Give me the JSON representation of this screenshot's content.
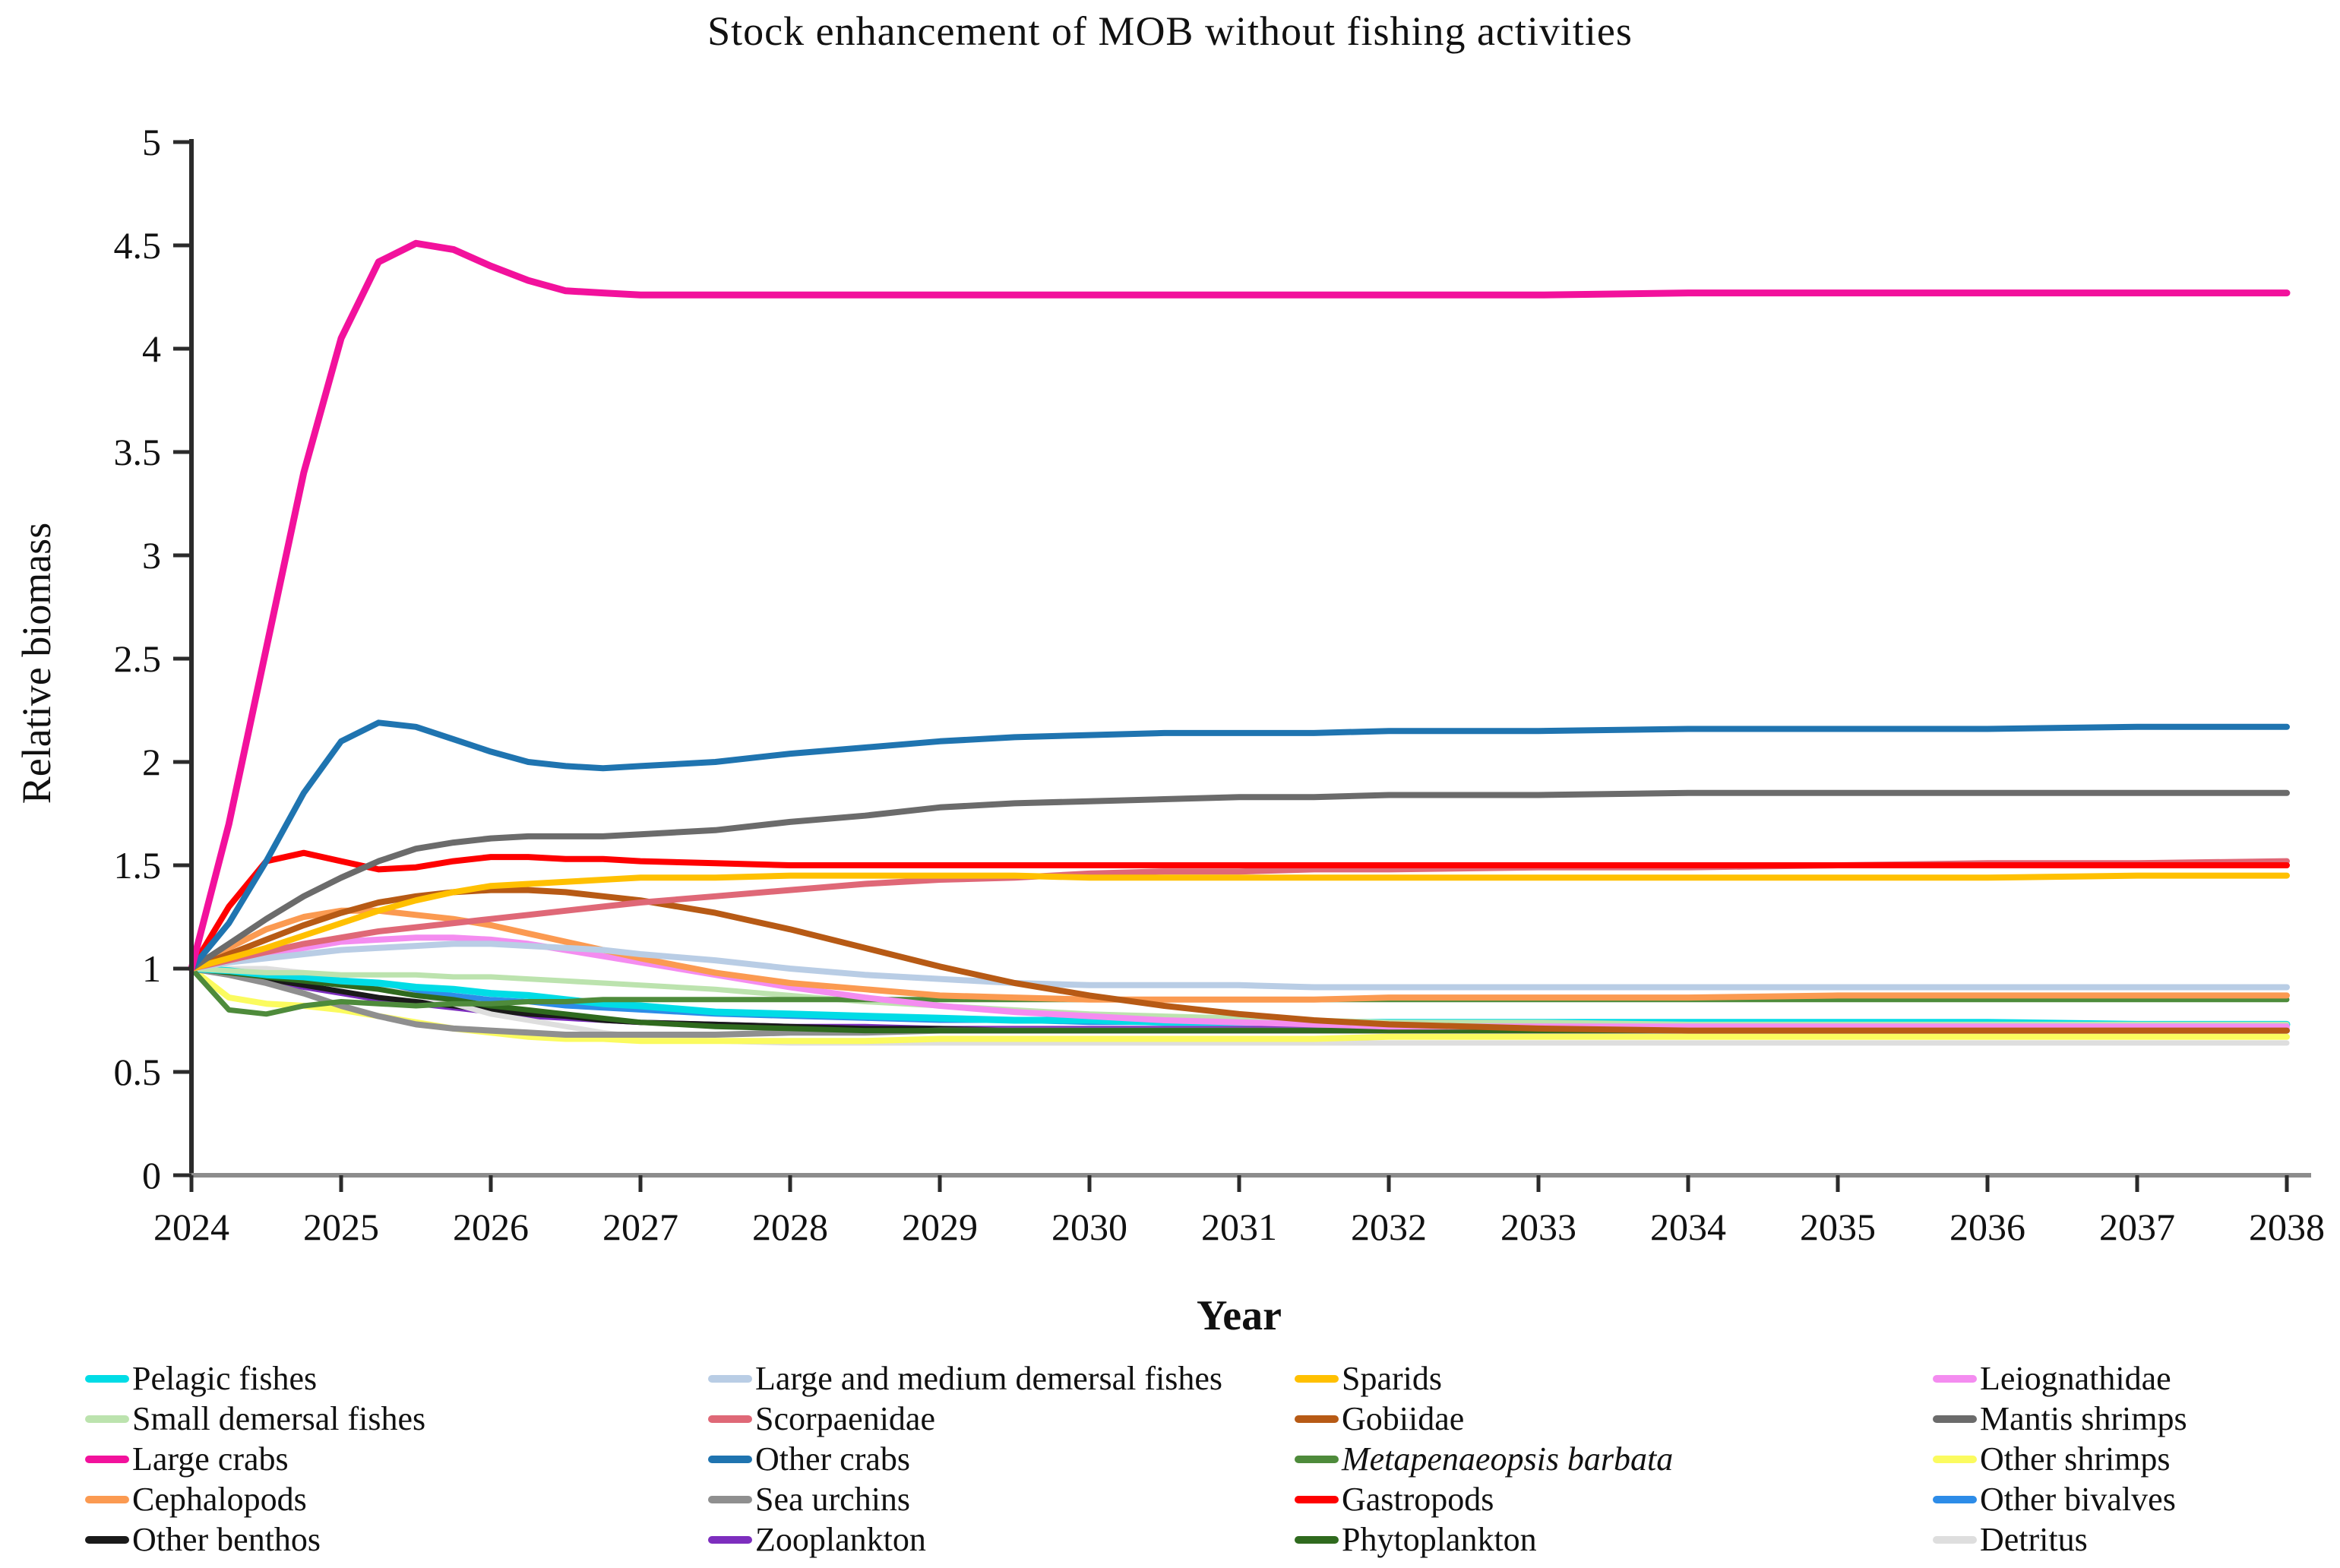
{
  "title": "Stock enhancement of MOB without fishing activities",
  "axes": {
    "x_label": "Year",
    "y_label": "Relative biomass",
    "x_tick_labels": [
      "2024",
      "2025",
      "2026",
      "2027",
      "2028",
      "2029",
      "2030",
      "2031",
      "2032",
      "2033",
      "2034",
      "2035",
      "2036",
      "2037",
      "2038"
    ],
    "y_tick_labels": [
      "5",
      "4.5",
      "4",
      "3.5",
      "3",
      "2.5",
      "2",
      "1.5",
      "1",
      "0.5",
      "0"
    ],
    "x_range": [
      2024,
      2038
    ],
    "y_range": [
      0,
      5
    ],
    "grid": false,
    "legend_position": "bottom"
  },
  "chart_data": {
    "type": "line",
    "x": [
      2024,
      2024.25,
      2024.5,
      2024.75,
      2025,
      2025.25,
      2025.5,
      2025.75,
      2026,
      2026.25,
      2026.5,
      2026.75,
      2027,
      2027.5,
      2028,
      2028.5,
      2029,
      2029.5,
      2030,
      2030.5,
      2031,
      2031.5,
      2032,
      2033,
      2034,
      2035,
      2036,
      2037,
      2038
    ],
    "series": [
      {
        "name": "Other bivalves",
        "slug": "other-bivalves",
        "color": "#2D8CE8",
        "width": 7,
        "legend_slot": 18,
        "values": [
          1.0,
          0.99,
          0.97,
          0.95,
          0.93,
          0.91,
          0.89,
          0.87,
          0.85,
          0.84,
          0.82,
          0.81,
          0.8,
          0.78,
          0.77,
          0.76,
          0.75,
          0.75,
          0.74,
          0.74,
          0.74,
          0.74,
          0.74,
          0.73,
          0.73,
          0.73,
          0.73,
          0.73,
          0.73
        ]
      },
      {
        "name": "Zooplankton",
        "slug": "zooplankton",
        "color": "#7D2EBE",
        "width": 7,
        "legend_slot": 9,
        "values": [
          1.0,
          0.97,
          0.94,
          0.91,
          0.88,
          0.85,
          0.83,
          0.81,
          0.79,
          0.77,
          0.76,
          0.75,
          0.74,
          0.73,
          0.72,
          0.72,
          0.71,
          0.71,
          0.71,
          0.71,
          0.71,
          0.71,
          0.71,
          0.71,
          0.71,
          0.71,
          0.71,
          0.71,
          0.71
        ]
      },
      {
        "name": "Other benthos",
        "slug": "other-benthos",
        "color": "#1A1A1A",
        "width": 7,
        "legend_slot": 4,
        "values": [
          1.0,
          0.98,
          0.95,
          0.92,
          0.89,
          0.86,
          0.84,
          0.82,
          0.8,
          0.78,
          0.77,
          0.75,
          0.74,
          0.73,
          0.72,
          0.71,
          0.71,
          0.7,
          0.7,
          0.7,
          0.7,
          0.7,
          0.7,
          0.7,
          0.7,
          0.7,
          0.7,
          0.7,
          0.7
        ]
      },
      {
        "name": "Detritus",
        "slug": "detritus",
        "color": "#DEDEDE",
        "width": 7,
        "legend_slot": 19,
        "values": [
          1.0,
          1.0,
          1.0,
          0.98,
          0.95,
          0.91,
          0.87,
          0.83,
          0.78,
          0.75,
          0.72,
          0.69,
          0.67,
          0.65,
          0.64,
          0.64,
          0.64,
          0.64,
          0.64,
          0.64,
          0.64,
          0.64,
          0.64,
          0.64,
          0.64,
          0.64,
          0.64,
          0.64,
          0.64
        ]
      },
      {
        "name": "Other shrimps",
        "slug": "other-shrimps",
        "color": "#FBFB5F",
        "width": 8,
        "legend_slot": 17,
        "values": [
          1.0,
          0.86,
          0.83,
          0.82,
          0.8,
          0.77,
          0.74,
          0.71,
          0.69,
          0.67,
          0.66,
          0.66,
          0.65,
          0.65,
          0.65,
          0.65,
          0.66,
          0.66,
          0.66,
          0.66,
          0.66,
          0.66,
          0.67,
          0.67,
          0.67,
          0.67,
          0.67,
          0.67,
          0.67
        ]
      },
      {
        "name": "Sea urchins",
        "slug": "sea-urchins",
        "color": "#8F8F8F",
        "width": 8,
        "legend_slot": 8,
        "values": [
          1.0,
          0.97,
          0.93,
          0.88,
          0.82,
          0.77,
          0.73,
          0.71,
          0.7,
          0.69,
          0.68,
          0.68,
          0.68,
          0.68,
          0.69,
          0.69,
          0.7,
          0.7,
          0.7,
          0.7,
          0.7,
          0.7,
          0.7,
          0.7,
          0.7,
          0.7,
          0.7,
          0.7,
          0.7
        ]
      },
      {
        "name": "Phytoplankton",
        "slug": "phytoplankton",
        "color": "#2F6A1E",
        "width": 7,
        "legend_slot": 14,
        "values": [
          1.0,
          0.98,
          0.96,
          0.94,
          0.92,
          0.9,
          0.87,
          0.85,
          0.82,
          0.8,
          0.78,
          0.76,
          0.74,
          0.72,
          0.71,
          0.7,
          0.7,
          0.7,
          0.7,
          0.7,
          0.7,
          0.7,
          0.7,
          0.7,
          0.7,
          0.7,
          0.7,
          0.7,
          0.7
        ]
      },
      {
        "name": "Pelagic fishes",
        "slug": "pelagic-fishes",
        "color": "#00DCE6",
        "width": 9,
        "legend_slot": 0,
        "values": [
          1.0,
          0.99,
          0.97,
          0.96,
          0.94,
          0.93,
          0.91,
          0.9,
          0.88,
          0.87,
          0.85,
          0.83,
          0.82,
          0.79,
          0.78,
          0.77,
          0.76,
          0.75,
          0.75,
          0.74,
          0.74,
          0.74,
          0.74,
          0.74,
          0.74,
          0.74,
          0.74,
          0.73,
          0.73
        ]
      },
      {
        "name": "Small demersal fishes",
        "slug": "small-demersal-fishes",
        "color": "#BCE3AE",
        "width": 7,
        "legend_slot": 1,
        "values": [
          1.0,
          0.99,
          0.98,
          0.98,
          0.97,
          0.97,
          0.97,
          0.96,
          0.96,
          0.95,
          0.94,
          0.93,
          0.92,
          0.9,
          0.87,
          0.84,
          0.82,
          0.8,
          0.78,
          0.77,
          0.76,
          0.75,
          0.74,
          0.74,
          0.73,
          0.73,
          0.73,
          0.73,
          0.73
        ]
      },
      {
        "name": "Metapenaeopsis barbata",
        "slug": "metapenaeopsis-barbata",
        "color": "#4E8B3B",
        "width": 7,
        "italic": true,
        "legend_slot": 12,
        "values": [
          1.0,
          0.8,
          0.78,
          0.82,
          0.84,
          0.83,
          0.82,
          0.83,
          0.83,
          0.84,
          0.84,
          0.85,
          0.85,
          0.85,
          0.85,
          0.85,
          0.85,
          0.85,
          0.85,
          0.85,
          0.85,
          0.85,
          0.85,
          0.85,
          0.85,
          0.85,
          0.85,
          0.85,
          0.85
        ]
      },
      {
        "name": "Leiognathidae",
        "slug": "leiognathidae",
        "color": "#F48CF0",
        "width": 8,
        "legend_slot": 15,
        "values": [
          1.0,
          1.04,
          1.07,
          1.1,
          1.13,
          1.14,
          1.15,
          1.15,
          1.14,
          1.12,
          1.09,
          1.06,
          1.03,
          0.97,
          0.91,
          0.86,
          0.82,
          0.79,
          0.77,
          0.75,
          0.74,
          0.73,
          0.72,
          0.72,
          0.72,
          0.72,
          0.72,
          0.72,
          0.72
        ]
      },
      {
        "name": "Cephalopods",
        "slug": "cephalopods",
        "color": "#FB9A51",
        "width": 8,
        "legend_slot": 3,
        "values": [
          1.0,
          1.1,
          1.19,
          1.25,
          1.28,
          1.28,
          1.26,
          1.24,
          1.21,
          1.17,
          1.13,
          1.09,
          1.05,
          0.98,
          0.93,
          0.9,
          0.87,
          0.86,
          0.85,
          0.85,
          0.85,
          0.85,
          0.86,
          0.86,
          0.86,
          0.87,
          0.87,
          0.87,
          0.87
        ]
      },
      {
        "name": "Large and medium demersal fishes",
        "slug": "large-and-medium-demersal-fishes",
        "color": "#B9CDE5",
        "width": 8,
        "legend_slot": 5,
        "values": [
          1.0,
          1.03,
          1.05,
          1.07,
          1.09,
          1.1,
          1.11,
          1.12,
          1.12,
          1.11,
          1.1,
          1.09,
          1.07,
          1.04,
          1.0,
          0.97,
          0.95,
          0.93,
          0.92,
          0.92,
          0.92,
          0.91,
          0.91,
          0.91,
          0.91,
          0.91,
          0.91,
          0.91,
          0.91
        ]
      },
      {
        "name": "Gobiidae",
        "slug": "gobiidae",
        "color": "#B75A15",
        "width": 8,
        "legend_slot": 11,
        "values": [
          1.0,
          1.07,
          1.14,
          1.21,
          1.27,
          1.32,
          1.35,
          1.37,
          1.38,
          1.38,
          1.37,
          1.35,
          1.33,
          1.27,
          1.19,
          1.1,
          1.01,
          0.93,
          0.87,
          0.82,
          0.78,
          0.75,
          0.73,
          0.71,
          0.7,
          0.7,
          0.7,
          0.7,
          0.7
        ]
      },
      {
        "name": "Scorpaenidae",
        "slug": "scorpaenidae",
        "color": "#DF6877",
        "width": 8,
        "legend_slot": 6,
        "values": [
          1.0,
          1.04,
          1.08,
          1.12,
          1.15,
          1.18,
          1.2,
          1.22,
          1.24,
          1.26,
          1.28,
          1.3,
          1.32,
          1.35,
          1.38,
          1.41,
          1.43,
          1.44,
          1.46,
          1.47,
          1.47,
          1.48,
          1.48,
          1.49,
          1.49,
          1.5,
          1.51,
          1.51,
          1.52
        ]
      },
      {
        "name": "Sparids",
        "slug": "sparids",
        "color": "#FFC000",
        "width": 8,
        "legend_slot": 10,
        "values": [
          1.0,
          1.05,
          1.1,
          1.16,
          1.22,
          1.28,
          1.33,
          1.37,
          1.4,
          1.41,
          1.42,
          1.43,
          1.44,
          1.44,
          1.45,
          1.45,
          1.45,
          1.45,
          1.44,
          1.44,
          1.44,
          1.44,
          1.44,
          1.44,
          1.44,
          1.44,
          1.44,
          1.45,
          1.45
        ]
      },
      {
        "name": "Gastropods",
        "slug": "gastropods",
        "color": "#FE0000",
        "width": 8,
        "legend_slot": 13,
        "values": [
          1.0,
          1.3,
          1.52,
          1.56,
          1.52,
          1.48,
          1.49,
          1.52,
          1.54,
          1.54,
          1.53,
          1.53,
          1.52,
          1.51,
          1.5,
          1.5,
          1.5,
          1.5,
          1.5,
          1.5,
          1.5,
          1.5,
          1.5,
          1.5,
          1.5,
          1.5,
          1.5,
          1.5,
          1.5
        ]
      },
      {
        "name": "Mantis shrimps",
        "slug": "mantis-shrimps",
        "color": "#6B6B6B",
        "width": 8,
        "legend_slot": 16,
        "values": [
          1.0,
          1.12,
          1.24,
          1.35,
          1.44,
          1.52,
          1.58,
          1.61,
          1.63,
          1.64,
          1.64,
          1.64,
          1.65,
          1.67,
          1.71,
          1.74,
          1.78,
          1.8,
          1.81,
          1.82,
          1.83,
          1.83,
          1.84,
          1.84,
          1.85,
          1.85,
          1.85,
          1.85,
          1.85
        ]
      },
      {
        "name": "Other crabs",
        "slug": "other-crabs",
        "color": "#1F74B0",
        "width": 8,
        "legend_slot": 7,
        "values": [
          1.0,
          1.22,
          1.52,
          1.85,
          2.1,
          2.19,
          2.17,
          2.11,
          2.05,
          2.0,
          1.98,
          1.97,
          1.98,
          2.0,
          2.04,
          2.07,
          2.1,
          2.12,
          2.13,
          2.14,
          2.14,
          2.14,
          2.15,
          2.15,
          2.16,
          2.16,
          2.16,
          2.17,
          2.17
        ]
      },
      {
        "name": "Large crabs",
        "slug": "large-crabs",
        "color": "#F2119C",
        "width": 9,
        "legend_slot": 2,
        "values": [
          1.0,
          1.7,
          2.55,
          3.4,
          4.05,
          4.42,
          4.51,
          4.48,
          4.4,
          4.33,
          4.28,
          4.27,
          4.26,
          4.26,
          4.26,
          4.26,
          4.26,
          4.26,
          4.26,
          4.26,
          4.26,
          4.26,
          4.26,
          4.26,
          4.27,
          4.27,
          4.27,
          4.27,
          4.27
        ]
      }
    ]
  }
}
